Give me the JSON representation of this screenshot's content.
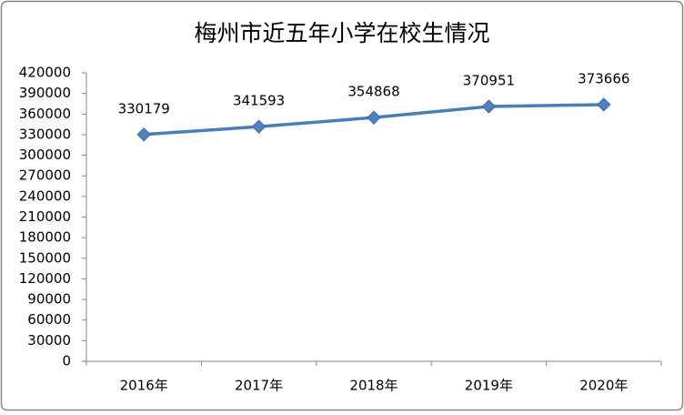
{
  "chart_data": {
    "type": "line",
    "title": "梅州市近五年小学在校生情况",
    "categories": [
      "2016年",
      "2017年",
      "2018年",
      "2019年",
      "2020年"
    ],
    "values": [
      330179,
      341593,
      354868,
      370951,
      373666
    ],
    "color": "#4a7ebb",
    "ylim": [
      0,
      420000
    ],
    "yticks": [
      0,
      30000,
      60000,
      90000,
      120000,
      150000,
      180000,
      210000,
      240000,
      270000,
      300000,
      330000,
      360000,
      390000,
      420000
    ],
    "grid": false
  }
}
